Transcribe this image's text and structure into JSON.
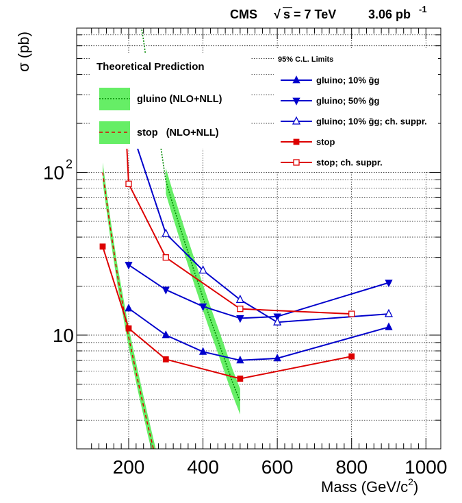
{
  "header": {
    "experiment": "CMS",
    "energy_sqrt": "√",
    "energy_rest": "s = 7 TeV",
    "lumi": "3.06 pb",
    "lumi_exp": "-1"
  },
  "chart_data": {
    "type": "line",
    "title": "",
    "xlabel": "Mass (GeV/c",
    "xlabel_exp": "2",
    "xlabel_close": ")",
    "ylabel": "σ (pb)",
    "xlim": [
      60,
      1040
    ],
    "ylim": [
      2.0,
      770
    ],
    "yscale": "log",
    "grid": true,
    "x_ticks": [
      200,
      400,
      600,
      800,
      1000
    ],
    "x_tick_labels": [
      "200",
      "400",
      "600",
      "800",
      "1000"
    ],
    "y_tick_labels": [
      {
        "value": 10,
        "base": "10",
        "exp": ""
      },
      {
        "value": 100,
        "base": "10",
        "exp": "2"
      }
    ],
    "bands": [
      {
        "name": "gluino (NLO+NLL)",
        "color": "#66ee66",
        "x": [
          300,
          320,
          340,
          360,
          380,
          400,
          420,
          440,
          460,
          480,
          500
        ],
        "y": [
          88.5,
          62.5,
          44.6,
          32.1,
          23.3,
          17.0,
          12.5,
          9.3,
          6.9,
          5.1,
          3.9
        ],
        "width_factor": 1.2
      },
      {
        "name": "stop   (NLO+NLL)",
        "color": "#66ee66",
        "x": [
          130,
          150,
          170,
          200,
          225,
          250,
          275,
          300
        ],
        "y": [
          100,
          46.3,
          23.2,
          9.7,
          5.2,
          2.9,
          1.66,
          0.98
        ],
        "width_factor": 1.15
      }
    ],
    "theory_lines": [
      {
        "name": "gluino curve",
        "color": "#008800",
        "dash": "2,2",
        "x": [
          158,
          180,
          200,
          220,
          240,
          260,
          280,
          300,
          320,
          340,
          360,
          380,
          400,
          420,
          440,
          460,
          480,
          500
        ],
        "y": [
          40000,
          12000,
          2500,
          1200,
          650,
          300,
          180,
          88.5,
          62.5,
          44.6,
          32.1,
          23.3,
          17.0,
          12.5,
          9.3,
          6.9,
          5.1,
          3.9
        ]
      },
      {
        "name": "stop curve",
        "color": "#dd0000",
        "dash": "5,4",
        "x": [
          130,
          150,
          170,
          200,
          225,
          250,
          275,
          300
        ],
        "y": [
          100,
          46.3,
          23.2,
          9.7,
          5.2,
          2.9,
          1.66,
          0.98
        ]
      }
    ],
    "legend_title": "95% C.L. Limits",
    "legend_position": "top-right",
    "series": [
      {
        "name": "gluino; 10% g̃g",
        "color": "#0000cc",
        "marker": "triangle-up",
        "x": [
          200,
          300,
          400,
          500,
          600,
          900
        ],
        "y": [
          14.6,
          10.0,
          7.9,
          7.0,
          7.2,
          11.2
        ]
      },
      {
        "name": "gluino; 50% g̃g",
        "color": "#0000cc",
        "marker": "triangle-down",
        "x": [
          200,
          300,
          400,
          500,
          600,
          900
        ],
        "y": [
          27.0,
          19.0,
          15.0,
          12.7,
          13.0,
          21.0
        ]
      },
      {
        "name": "gluino; 10% g̃g; ch. suppr.",
        "color": "#0000cc",
        "marker": "triangle-up-open",
        "x": [
          200,
          300,
          400,
          500,
          600,
          900
        ],
        "y": [
          205,
          42.0,
          25.0,
          16.5,
          12.0,
          13.5
        ]
      },
      {
        "name": "stop",
        "color": "#dd0000",
        "marker": "square",
        "x": [
          130,
          200,
          300,
          500,
          800
        ],
        "y": [
          35.0,
          11.0,
          7.1,
          5.4,
          7.4
        ]
      },
      {
        "name": "stop; ch. suppr.",
        "color": "#dd0000",
        "marker": "square-open",
        "x": [
          185,
          200,
          300,
          500,
          800
        ],
        "y": [
          400,
          85.0,
          30.0,
          14.5,
          13.5
        ]
      }
    ],
    "theory_legend_title": "Theoretical Prediction",
    "theory_legend_position": "top-left",
    "theory_legend": [
      {
        "name": "gluino (NLO+NLL)",
        "color": "#66ee66",
        "line": "#008800",
        "dash": "2,2"
      },
      {
        "name": "stop   (NLO+NLL)",
        "color": "#66ee66",
        "line": "#dd0000",
        "dash": "5,4"
      }
    ]
  }
}
